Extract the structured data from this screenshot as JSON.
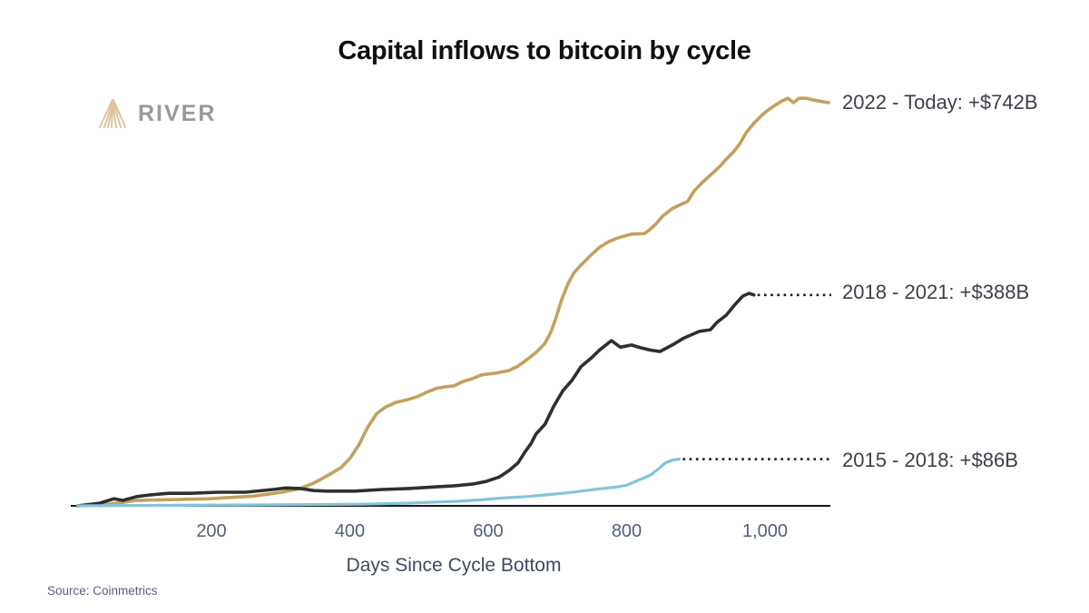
{
  "title": "Capital inflows to bitcoin by cycle",
  "logo": {
    "text": "RIVER",
    "icon_color": "#DCC49C",
    "text_color": "#97999d"
  },
  "source": "Source: Coinmetrics",
  "colors": {
    "axis": "#16181c",
    "leader_dotted": "#1c1c1c",
    "tick_text": "#525f78"
  },
  "chart_data": {
    "type": "line",
    "title": "Capital inflows to bitcoin by cycle",
    "xlabel": "Days Since Cycle Bottom",
    "ylabel": "",
    "xlim": [
      0,
      1095
    ],
    "ylim": [
      0,
      760
    ],
    "grid": false,
    "legend_position": "right-end-labels",
    "x_ticks": [
      {
        "value": 200,
        "label": "200"
      },
      {
        "value": 400,
        "label": "400"
      },
      {
        "value": 600,
        "label": "600"
      },
      {
        "value": 800,
        "label": "800"
      },
      {
        "value": 1000,
        "label": "1,000"
      }
    ],
    "series": [
      {
        "name": "2022 - Today",
        "label": "2022 - Today: +$742B",
        "final_value_billions": 742,
        "color": "#C3A05E",
        "width": 3.6,
        "leader": false,
        "points": [
          [
            7,
            0
          ],
          [
            52,
            3
          ],
          [
            92,
            10
          ],
          [
            197,
            13
          ],
          [
            262,
            18
          ],
          [
            302,
            25
          ],
          [
            328,
            32
          ],
          [
            348,
            42
          ],
          [
            367,
            55
          ],
          [
            387,
            70
          ],
          [
            400,
            87
          ],
          [
            413,
            112
          ],
          [
            426,
            145
          ],
          [
            439,
            170
          ],
          [
            452,
            182
          ],
          [
            466,
            190
          ],
          [
            485,
            196
          ],
          [
            498,
            201
          ],
          [
            511,
            209
          ],
          [
            525,
            216
          ],
          [
            538,
            219
          ],
          [
            551,
            221
          ],
          [
            564,
            229
          ],
          [
            577,
            234
          ],
          [
            590,
            241
          ],
          [
            610,
            244
          ],
          [
            630,
            249
          ],
          [
            643,
            257
          ],
          [
            656,
            269
          ],
          [
            669,
            282
          ],
          [
            682,
            299
          ],
          [
            691,
            321
          ],
          [
            698,
            346
          ],
          [
            706,
            379
          ],
          [
            715,
            408
          ],
          [
            724,
            429
          ],
          [
            734,
            443
          ],
          [
            748,
            461
          ],
          [
            761,
            476
          ],
          [
            774,
            486
          ],
          [
            787,
            493
          ],
          [
            807,
            500
          ],
          [
            826,
            501
          ],
          [
            833,
            508
          ],
          [
            842,
            518
          ],
          [
            852,
            533
          ],
          [
            866,
            547
          ],
          [
            879,
            555
          ],
          [
            888,
            560
          ],
          [
            898,
            580
          ],
          [
            911,
            597
          ],
          [
            925,
            613
          ],
          [
            935,
            625
          ],
          [
            944,
            638
          ],
          [
            955,
            652
          ],
          [
            964,
            667
          ],
          [
            973,
            687
          ],
          [
            984,
            704
          ],
          [
            994,
            717
          ],
          [
            1003,
            727
          ],
          [
            1012,
            735
          ],
          [
            1023,
            744
          ],
          [
            1033,
            750
          ],
          [
            1041,
            742
          ],
          [
            1049,
            750
          ],
          [
            1060,
            750
          ],
          [
            1069,
            747
          ],
          [
            1082,
            744
          ],
          [
            1092,
            742
          ]
        ]
      },
      {
        "name": "2018 - 2021",
        "label": "2018 - 2021: +$388B",
        "final_value_billions": 388,
        "color": "#2E2F31",
        "width": 3.6,
        "leader": true,
        "points": [
          [
            7,
            0
          ],
          [
            39,
            5
          ],
          [
            59,
            13
          ],
          [
            72,
            10
          ],
          [
            92,
            17
          ],
          [
            111,
            20
          ],
          [
            138,
            23
          ],
          [
            170,
            23
          ],
          [
            210,
            25
          ],
          [
            249,
            25
          ],
          [
            289,
            30
          ],
          [
            308,
            33
          ],
          [
            328,
            32
          ],
          [
            348,
            28
          ],
          [
            367,
            27
          ],
          [
            407,
            27
          ],
          [
            446,
            30
          ],
          [
            485,
            32
          ],
          [
            525,
            35
          ],
          [
            551,
            37
          ],
          [
            577,
            40
          ],
          [
            597,
            45
          ],
          [
            616,
            53
          ],
          [
            630,
            65
          ],
          [
            643,
            79
          ],
          [
            653,
            99
          ],
          [
            662,
            115
          ],
          [
            669,
            132
          ],
          [
            682,
            150
          ],
          [
            695,
            184
          ],
          [
            708,
            212
          ],
          [
            721,
            231
          ],
          [
            734,
            256
          ],
          [
            748,
            271
          ],
          [
            761,
            287
          ],
          [
            778,
            304
          ],
          [
            791,
            292
          ],
          [
            807,
            296
          ],
          [
            820,
            291
          ],
          [
            833,
            287
          ],
          [
            848,
            284
          ],
          [
            866,
            296
          ],
          [
            883,
            309
          ],
          [
            905,
            321
          ],
          [
            921,
            324
          ],
          [
            931,
            338
          ],
          [
            944,
            351
          ],
          [
            957,
            371
          ],
          [
            968,
            386
          ],
          [
            977,
            391
          ],
          [
            984,
            388
          ]
        ]
      },
      {
        "name": "2015 - 2018",
        "label": "2015 - 2018: +$86B",
        "final_value_billions": 86,
        "color": "#85C4DA",
        "width": 3.2,
        "leader": true,
        "points": [
          [
            7,
            0
          ],
          [
            150,
            1
          ],
          [
            300,
            2
          ],
          [
            420,
            3
          ],
          [
            485,
            5
          ],
          [
            525,
            7
          ],
          [
            551,
            8
          ],
          [
            590,
            11
          ],
          [
            616,
            14
          ],
          [
            656,
            17
          ],
          [
            682,
            20
          ],
          [
            708,
            23
          ],
          [
            734,
            27
          ],
          [
            760,
            31
          ],
          [
            787,
            35
          ],
          [
            800,
            38
          ],
          [
            813,
            45
          ],
          [
            826,
            52
          ],
          [
            835,
            57
          ],
          [
            846,
            68
          ],
          [
            856,
            79
          ],
          [
            866,
            84
          ],
          [
            876,
            86
          ]
        ]
      }
    ]
  }
}
